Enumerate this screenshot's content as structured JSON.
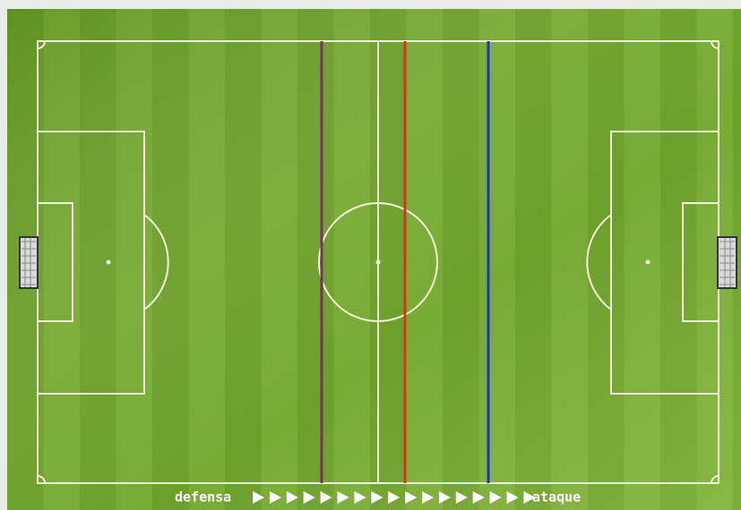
{
  "labels": {
    "left": "defensa",
    "right": "ataque"
  }
}
